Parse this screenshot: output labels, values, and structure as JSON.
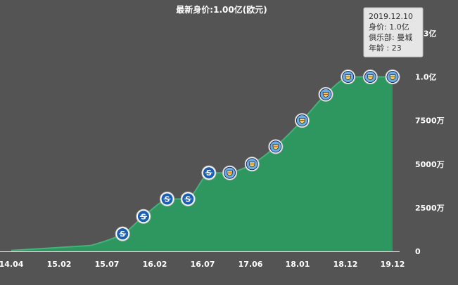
{
  "chart_data": {
    "type": "area",
    "title": "最新身价:1.00亿(欧元)",
    "xlabel": "",
    "ylabel": "",
    "x_tick_labels": [
      "14.04",
      "15.02",
      "15.07",
      "16.02",
      "16.07",
      "17.06",
      "18.01",
      "18.12",
      "19.12"
    ],
    "y_tick_labels": [
      "0",
      "2500万",
      "5000万",
      "7500万",
      "1.0亿",
      "1.3亿"
    ],
    "ylim": [
      0,
      130000000
    ],
    "grid": false,
    "legend": "none",
    "fill_color": "#2e9760",
    "line_color": "#45b07a",
    "background_color": "#545454",
    "series": [
      {
        "points": [
          {
            "x": 0,
            "y": 500000,
            "club": ""
          },
          {
            "x": 2.55,
            "y": 3000000,
            "club": ""
          },
          {
            "x": 3.0,
            "y": 4000000,
            "club": ""
          },
          {
            "x": 4.0,
            "y": 10000000,
            "club": "Schalke"
          },
          {
            "x": 4.75,
            "y": 20000000,
            "club": "Schalke"
          },
          {
            "x": 5.6,
            "y": 30000000,
            "club": "Schalke"
          },
          {
            "x": 6.35,
            "y": 30000000,
            "club": "Schalke"
          },
          {
            "x": 7.1,
            "y": 45000000,
            "club": "Schalke"
          },
          {
            "x": 7.85,
            "y": 45000000,
            "club": "Manchester City"
          },
          {
            "x": 8.65,
            "y": 50000000,
            "club": "Manchester City"
          },
          {
            "x": 9.5,
            "y": 60000000,
            "club": "Manchester City"
          },
          {
            "x": 10.45,
            "y": 75000000,
            "club": "Manchester City"
          },
          {
            "x": 11.3,
            "y": 90000000,
            "club": "Manchester City"
          },
          {
            "x": 12.1,
            "y": 100000000,
            "club": "Manchester City"
          },
          {
            "x": 12.9,
            "y": 100000000,
            "club": "Manchester City"
          },
          {
            "x": 13.7,
            "y": 100000000,
            "club": "Manchester City"
          }
        ]
      }
    ],
    "tooltip": {
      "date": "2019.12.10",
      "value": "身价: 1.0亿",
      "club": "俱乐部: 曼城",
      "age": "年龄 : 23"
    }
  }
}
